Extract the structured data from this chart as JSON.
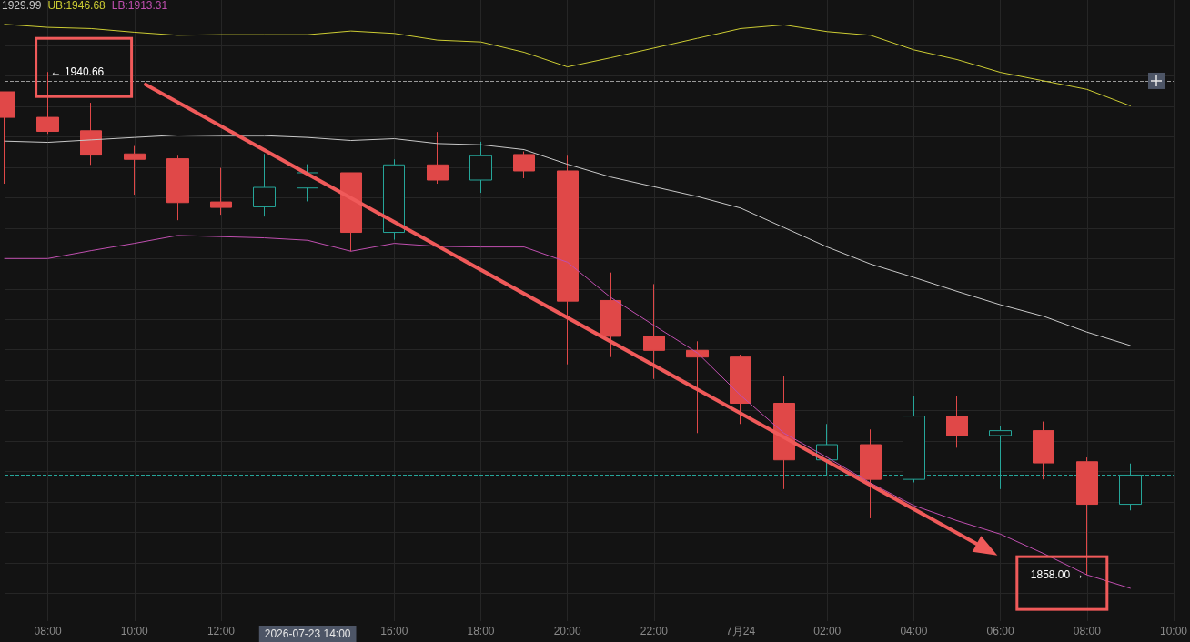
{
  "chart_data": {
    "type": "candlestick",
    "categories": [
      null,
      "08:00",
      null,
      "10:00",
      null,
      "12:00",
      null,
      "2026-07-23 14:00",
      null,
      "16:00",
      null,
      "18:00",
      null,
      "20:00",
      null,
      "22:00",
      null,
      "7月24",
      null,
      "02:00",
      null,
      "04:00",
      null,
      "06:00",
      null,
      "08:00",
      null,
      "10:00"
    ],
    "ohlc": [
      [
        1937.4,
        1937.4,
        1922.3,
        1933.2
      ],
      [
        1933.2,
        1940.66,
        1930.5,
        1930.9
      ],
      [
        1931.0,
        1935.6,
        1925.4,
        1927.0
      ],
      [
        1927.2,
        1928.5,
        1920.5,
        1926.3
      ],
      [
        1926.4,
        1926.9,
        1916.3,
        1919.2
      ],
      [
        1919.3,
        1924.9,
        1917.2,
        1918.4
      ],
      [
        1918.5,
        1927.2,
        1916.9,
        1921.7
      ],
      [
        1921.6,
        1925.5,
        1919.4,
        1924.1
      ],
      [
        1924.1,
        1924.1,
        1911.2,
        1914.3
      ],
      [
        1914.3,
        1926.3,
        1913.1,
        1925.4
      ],
      [
        1925.4,
        1930.8,
        1922.3,
        1922.9
      ],
      [
        1922.9,
        1929.2,
        1920.8,
        1926.9
      ],
      [
        1927.1,
        1927.6,
        1923.2,
        1924.4
      ],
      [
        1924.4,
        1926.9,
        1892.6,
        1903.0
      ],
      [
        1903.1,
        1907.7,
        1893.8,
        1897.2
      ],
      [
        1897.2,
        1905.8,
        1890.2,
        1894.9
      ],
      [
        1894.9,
        1896.4,
        1881.3,
        1893.8
      ],
      [
        1893.8,
        1894.2,
        1882.8,
        1886.2
      ],
      [
        1886.2,
        1890.7,
        1872.1,
        1876.9
      ],
      [
        1876.9,
        1882.8,
        1874.2,
        1879.4
      ],
      [
        1879.4,
        1881.9,
        1867.3,
        1873.7
      ],
      [
        1873.7,
        1887.4,
        1873.2,
        1884.1
      ],
      [
        1884.1,
        1887.4,
        1878.9,
        1880.9
      ],
      [
        1880.9,
        1882.5,
        1872.1,
        1881.7
      ],
      [
        1881.7,
        1883.2,
        1873.7,
        1876.4
      ],
      [
        1876.6,
        1877.3,
        1858.0,
        1869.6
      ],
      [
        1869.6,
        1876.3,
        1868.6,
        1874.4
      ],
      null
    ],
    "colors": [
      "#e04848",
      "#e04848",
      "#e04848",
      "#e04848",
      "#e04848",
      "#e04848",
      "#26a69a",
      "#26a69a",
      "#e04848",
      "#26a69a",
      "#e04848",
      "#26a69a",
      "#e04848",
      "#e04848",
      "#e04848",
      "#e04848",
      "#e04848",
      "#e04848",
      "#e04848",
      "#26a69a",
      "#e04848",
      "#26a69a",
      "#e04848",
      "#26a69a",
      "#e04848",
      "#e04848",
      "#26a69a",
      null
    ],
    "series": [
      {
        "type": "line",
        "color": "#c8c8c8",
        "values": [
          1929.3,
          1929.1,
          1929.5,
          1929.9,
          1930.3,
          1930.2,
          1930.2,
          1929.9,
          1929.4,
          1929.7,
          1928.9,
          1928.7,
          1927.9,
          1925.5,
          1923.4,
          1921.8,
          1920.2,
          1918.3,
          1915.1,
          1911.9,
          1909.1,
          1906.9,
          1904.6,
          1902.4,
          1900.5,
          1897.9,
          1895.7,
          null
        ]
      },
      {
        "type": "line",
        "color": "#cccc33",
        "values": [
          1948.5,
          1948.0,
          1947.8,
          1947.2,
          1946.7,
          1946.8,
          1946.8,
          1946.8,
          1947.4,
          1947.0,
          1945.9,
          1945.6,
          1943.9,
          1941.5,
          1943.0,
          1944.6,
          1946.2,
          1947.8,
          1948.4,
          1947.3,
          1946.7,
          1944.3,
          1942.7,
          1940.6,
          1939.2,
          1937.8,
          1935.1,
          null
        ]
      },
      {
        "type": "line",
        "color": "#c04fb0",
        "values": [
          1910.0,
          1910.0,
          1911.3,
          1912.5,
          1913.8,
          1913.6,
          1913.4,
          1913.0,
          1911.2,
          1912.5,
          1912.0,
          1911.9,
          1911.9,
          1909.4,
          1903.6,
          1899.0,
          1894.5,
          1887.5,
          1881.3,
          1877.3,
          1873.1,
          1869.4,
          1866.9,
          1864.7,
          1861.5,
          1858.0,
          1855.8,
          null
        ]
      }
    ],
    "ylim": [
      1850.4,
      1952.5
    ],
    "yticks": [
      {
        "value": 1855,
        "label": null
      },
      {
        "value": 1860,
        "label": null
      },
      {
        "value": 1865,
        "label": null
      },
      {
        "value": 1870,
        "label": null
      },
      {
        "value": 1875,
        "label": null
      },
      {
        "value": 1880,
        "label": null
      },
      {
        "value": 1885,
        "label": null
      },
      {
        "value": 1890,
        "label": null
      },
      {
        "value": 1895,
        "label": null
      },
      {
        "value": 1900,
        "label": null
      },
      {
        "value": 1905,
        "label": null
      },
      {
        "value": 1910,
        "label": null
      },
      {
        "value": 1915,
        "label": null
      },
      {
        "value": 1920,
        "label": null
      },
      {
        "value": 1925,
        "label": null
      },
      {
        "value": 1930,
        "label": null
      },
      {
        "value": 1935,
        "label": null
      },
      {
        "value": 1940,
        "label": null
      },
      {
        "value": 1945,
        "label": null
      },
      {
        "value": 1950,
        "label": null
      }
    ],
    "tick_labels": "x",
    "grid": true,
    "marker": "none",
    "ref_lines": [
      {
        "axis": "x",
        "value": "2026-07-23 14:00",
        "color": "#9a9a9a",
        "line_style": "dashed"
      },
      {
        "axis": "y",
        "value": 1939.2,
        "color": "#9a9a9a",
        "line_style": "dashed"
      },
      {
        "axis": "y",
        "value": 1874.4,
        "color": "#26a69a",
        "line_style": "dashed"
      }
    ],
    "annotations": [
      "1929.99",
      "UB:1946.68",
      "LB:1913.31",
      {
        "text": "← 1940.66",
        "x": "08:00",
        "y": 1940.66
      },
      "1858.00 →"
    ]
  }
}
